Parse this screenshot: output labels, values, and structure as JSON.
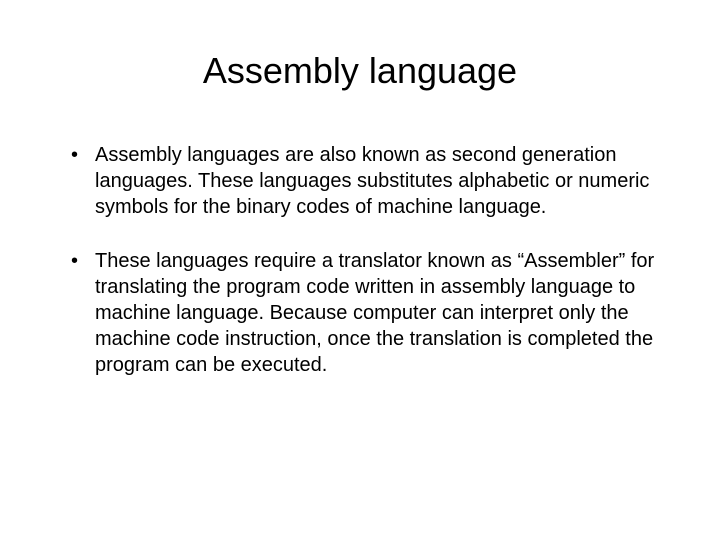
{
  "slide": {
    "title": "Assembly language",
    "title_fontsize": 36,
    "title_color": "#000000",
    "background_color": "#ffffff",
    "body_fontsize": 20,
    "body_color": "#000000",
    "bullets": [
      "Assembly languages are also known as second generation languages. These languages substitutes alphabetic or numeric symbols for the binary codes of machine language.",
      "These languages require a translator known as “Assembler” for translating the program code written in assembly language to machine language. Because computer can interpret only the machine code instruction, once the translation is completed the program can be executed."
    ]
  }
}
